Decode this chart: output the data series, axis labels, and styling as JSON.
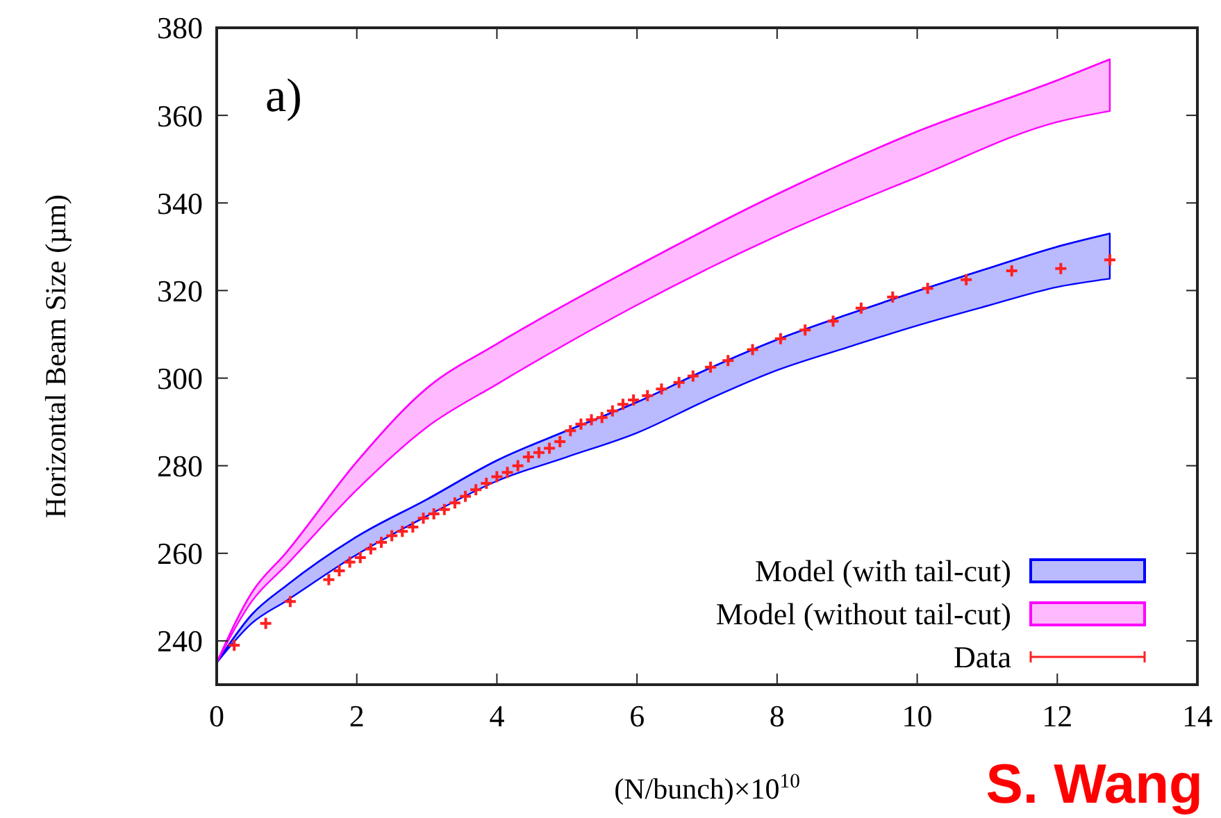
{
  "chart_data": {
    "type": "line",
    "xlabel": "(N/bunch)×10$^{10}$",
    "ylabel": "Horizontal Beam Size (µm)",
    "annotations": [
      "a)",
      "S. Wang"
    ],
    "xlim": [
      0,
      14
    ],
    "ylim": [
      230,
      380
    ],
    "xticks": [
      0,
      2,
      4,
      6,
      8,
      10,
      12,
      14
    ],
    "yticks": [
      240,
      260,
      280,
      300,
      320,
      340,
      360,
      380
    ],
    "grid": false,
    "legend": "bottom right",
    "series": [
      {
        "name": "Model (with tail-cut)",
        "color": "#0000ff",
        "x": [
          0,
          0.5,
          1,
          2,
          3,
          4,
          5,
          6,
          7,
          8,
          9,
          10,
          11,
          12,
          12.75
        ],
        "values": [
          235,
          246,
          252.7,
          263.8,
          272.3,
          281.2,
          288,
          294.5,
          302,
          308.8,
          314.5,
          319.9,
          325,
          330,
          333
        ],
        "upper": [
          235,
          246,
          252.7,
          263.8,
          272.3,
          281.2,
          288,
          294.5,
          302,
          308.8,
          314.5,
          319.9,
          325,
          330,
          333
        ],
        "lower": [
          235,
          244,
          249.2,
          259.7,
          268.5,
          276.5,
          282,
          287.5,
          295,
          301.8,
          307,
          312,
          316.5,
          320.8,
          322.7
        ]
      },
      {
        "name": "Model (without tail-cut)",
        "color": "#ff00ff",
        "x": [
          0,
          0.5,
          1,
          2,
          3,
          4,
          6,
          8,
          10,
          12,
          12.75
        ],
        "values": [
          235,
          251,
          260.3,
          280.9,
          297.7,
          307.8,
          325.6,
          342,
          356.3,
          368,
          372.8
        ],
        "upper": [
          235,
          251,
          260.3,
          280.9,
          297.7,
          307.8,
          325.6,
          342,
          356.3,
          368,
          372.8
        ],
        "lower": [
          235,
          249,
          257.4,
          274.5,
          288.8,
          298.6,
          316.7,
          332.5,
          345.9,
          358.5,
          361
        ]
      },
      {
        "name": "Data",
        "type": "scatter",
        "color": "#ff2020",
        "marker": "cross",
        "x": [
          0.25,
          0.7,
          1.05,
          1.6,
          1.75,
          1.9,
          2.05,
          2.2,
          2.35,
          2.5,
          2.65,
          2.8,
          2.95,
          3.1,
          3.25,
          3.4,
          3.55,
          3.7,
          3.85,
          4.0,
          4.15,
          4.3,
          4.45,
          4.6,
          4.75,
          4.9,
          5.05,
          5.2,
          5.35,
          5.5,
          5.65,
          5.8,
          5.95,
          6.15,
          6.35,
          6.6,
          6.8,
          7.05,
          7.3,
          7.65,
          8.05,
          8.4,
          8.8,
          9.2,
          9.65,
          10.15,
          10.7,
          11.35,
          12.05,
          12.75
        ],
        "values": [
          239,
          244,
          249,
          254,
          256,
          258,
          259,
          261,
          262.5,
          264,
          265,
          266,
          268,
          269,
          270,
          271.5,
          273,
          274.5,
          276,
          277.5,
          278.5,
          280,
          282,
          283,
          284,
          285.5,
          288,
          289.5,
          290.5,
          291,
          292.5,
          294,
          295,
          296,
          297.5,
          299,
          300.5,
          302.5,
          304,
          306.5,
          309,
          311,
          313,
          316,
          318.5,
          320.5,
          322.5,
          324.5,
          325,
          327
        ]
      }
    ]
  }
}
